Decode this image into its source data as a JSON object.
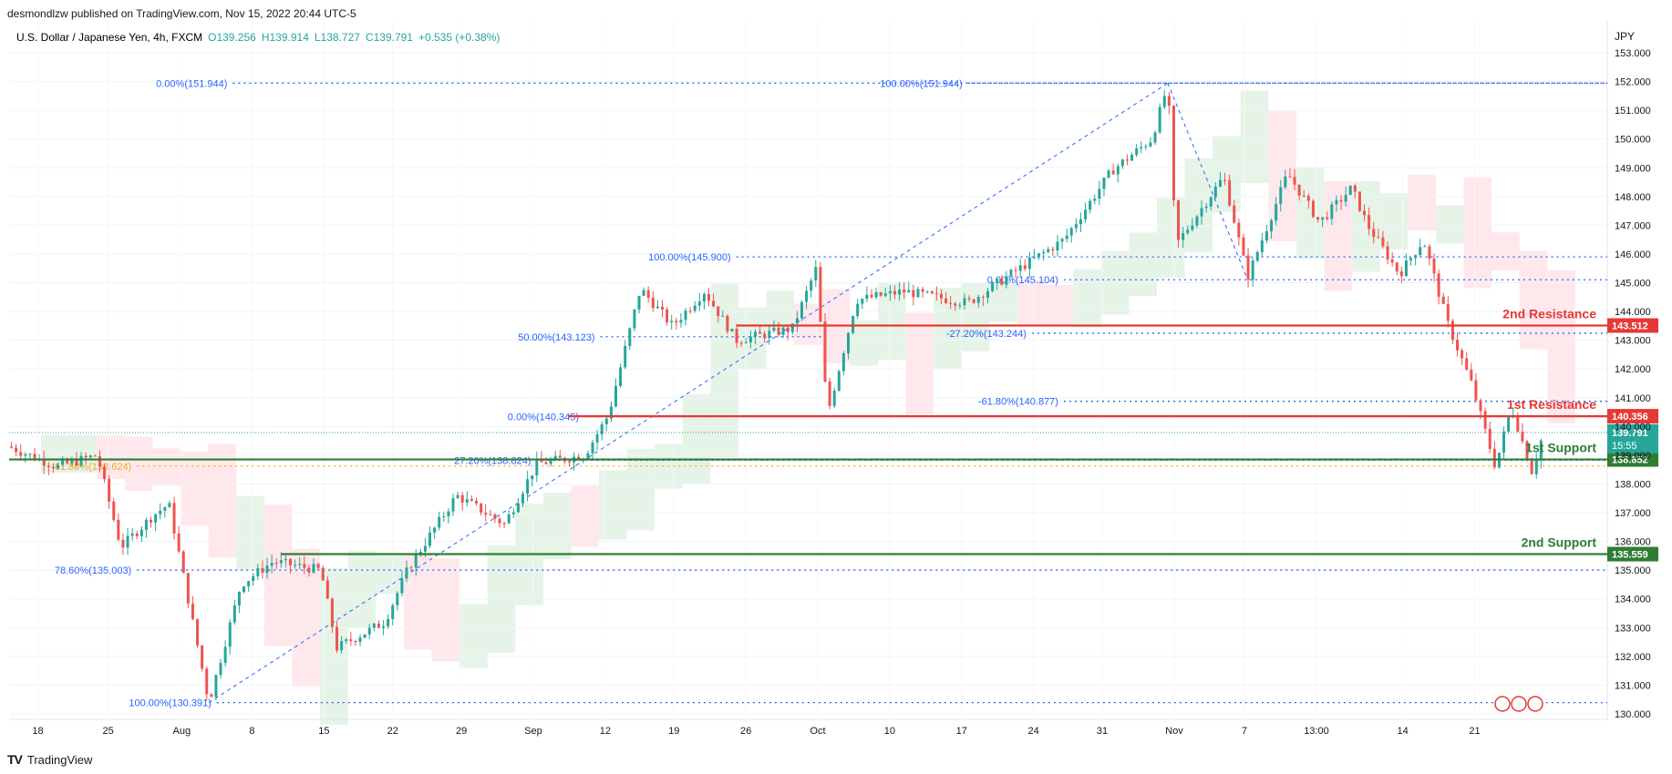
{
  "publisher": "desmondlzw published on TradingView.com, Nov 15, 2022 20:44 UTC-5",
  "header": {
    "symbol": "U.S. Dollar / Japanese Yen, 4h, FXCM",
    "open": "O139.256",
    "high": "H139.914",
    "low": "L138.727",
    "close": "C139.791",
    "change": "+0.535 (+0.38%)"
  },
  "currency": "JPY",
  "footer": {
    "brand": "TradingView"
  },
  "colors": {
    "up": "#26a69a",
    "down": "#ef5350",
    "resistance": "#e53935",
    "support": "#2e7d32",
    "fib": "#2962ff",
    "fib_gold": "#f9a825",
    "cloud_green": "#c8e6c9",
    "cloud_red": "#ffcdd2",
    "price_badge": "#26a69a"
  },
  "chart_data": {
    "type": "candlestick",
    "ylim": [
      130,
      153
    ],
    "y_ticks": [
      "153.000",
      "152.000",
      "151.000",
      "150.000",
      "149.000",
      "148.000",
      "147.000",
      "146.000",
      "145.000",
      "144.000",
      "143.000",
      "142.000",
      "141.000",
      "140.000",
      "139.000",
      "138.000",
      "137.000",
      "136.000",
      "135.000",
      "134.000",
      "133.000",
      "132.000",
      "131.000",
      "130.000"
    ],
    "x_ticks": [
      "18",
      "25",
      "Aug",
      "8",
      "15",
      "22",
      "29",
      "Sep",
      "12",
      "19",
      "26",
      "Oct",
      "10",
      "17",
      "24",
      "31",
      "Nov",
      "7",
      "13:00",
      "14",
      "21"
    ],
    "levels": [
      {
        "label": "2nd Resistance",
        "value": 143.512,
        "badge": "143.512",
        "kind": "resistance"
      },
      {
        "label": "1st Resistance",
        "value": 140.356,
        "badge": "140.356",
        "kind": "resistance"
      },
      {
        "label": "1st Support",
        "value": 138.852,
        "badge": "138.852",
        "kind": "support"
      },
      {
        "label": "2nd Support",
        "value": 135.559,
        "badge": "135.559",
        "kind": "support"
      }
    ],
    "current_price": {
      "value": 139.791,
      "badge": "139.791",
      "countdown": "15:55"
    },
    "fib_labels": [
      {
        "text": "0.00%(151.944)",
        "value": 151.944
      },
      {
        "text": "100.00%(151.944)",
        "value": 151.944
      },
      {
        "text": "100.00%(145.900)",
        "value": 145.9
      },
      {
        "text": "0.00%(145.104)",
        "value": 145.104
      },
      {
        "text": "50.00%(143.123)",
        "value": 143.123
      },
      {
        "text": "-27.20%(143.244)",
        "value": 143.244
      },
      {
        "text": "-61.80%(140.877)",
        "value": 140.877
      },
      {
        "text": "0.00%(140.345)",
        "value": 140.345
      },
      {
        "text": "61.80%(138.624)",
        "value": 138.624
      },
      {
        "text": "27.20%(138.824)",
        "value": 138.824
      },
      {
        "text": "78.60%(135.003)",
        "value": 135.003
      },
      {
        "text": "100.00%(130.391)",
        "value": 130.391
      }
    ],
    "path_points": [
      [
        0,
        139.3
      ],
      [
        0.03,
        138.6
      ],
      [
        0.055,
        139.0
      ],
      [
        0.07,
        135.8
      ],
      [
        0.09,
        136.9
      ],
      [
        0.1,
        137.3
      ],
      [
        0.125,
        130.4
      ],
      [
        0.145,
        134.5
      ],
      [
        0.165,
        135.3
      ],
      [
        0.195,
        135.0
      ],
      [
        0.205,
        132.3
      ],
      [
        0.235,
        133.2
      ],
      [
        0.25,
        135.1
      ],
      [
        0.28,
        137.6
      ],
      [
        0.31,
        136.6
      ],
      [
        0.33,
        138.7
      ],
      [
        0.36,
        139.0
      ],
      [
        0.375,
        140.4
      ],
      [
        0.395,
        144.8
      ],
      [
        0.415,
        143.5
      ],
      [
        0.435,
        144.7
      ],
      [
        0.455,
        143.0
      ],
      [
        0.49,
        143.4
      ],
      [
        0.505,
        145.5
      ],
      [
        0.512,
        140.4
      ],
      [
        0.53,
        144.4
      ],
      [
        0.56,
        144.7
      ],
      [
        0.6,
        144.3
      ],
      [
        0.635,
        145.6
      ],
      [
        0.66,
        146.5
      ],
      [
        0.69,
        148.9
      ],
      [
        0.715,
        150.0
      ],
      [
        0.725,
        151.9
      ],
      [
        0.73,
        146.3
      ],
      [
        0.76,
        148.7
      ],
      [
        0.775,
        145.2
      ],
      [
        0.8,
        148.8
      ],
      [
        0.82,
        147.1
      ],
      [
        0.84,
        148.3
      ],
      [
        0.85,
        147.0
      ],
      [
        0.87,
        145.3
      ],
      [
        0.885,
        146.5
      ],
      [
        0.9,
        143.6
      ],
      [
        0.915,
        141.5
      ],
      [
        0.93,
        138.6
      ],
      [
        0.94,
        140.7
      ],
      [
        0.953,
        138.4
      ],
      [
        0.96,
        139.8
      ]
    ]
  }
}
